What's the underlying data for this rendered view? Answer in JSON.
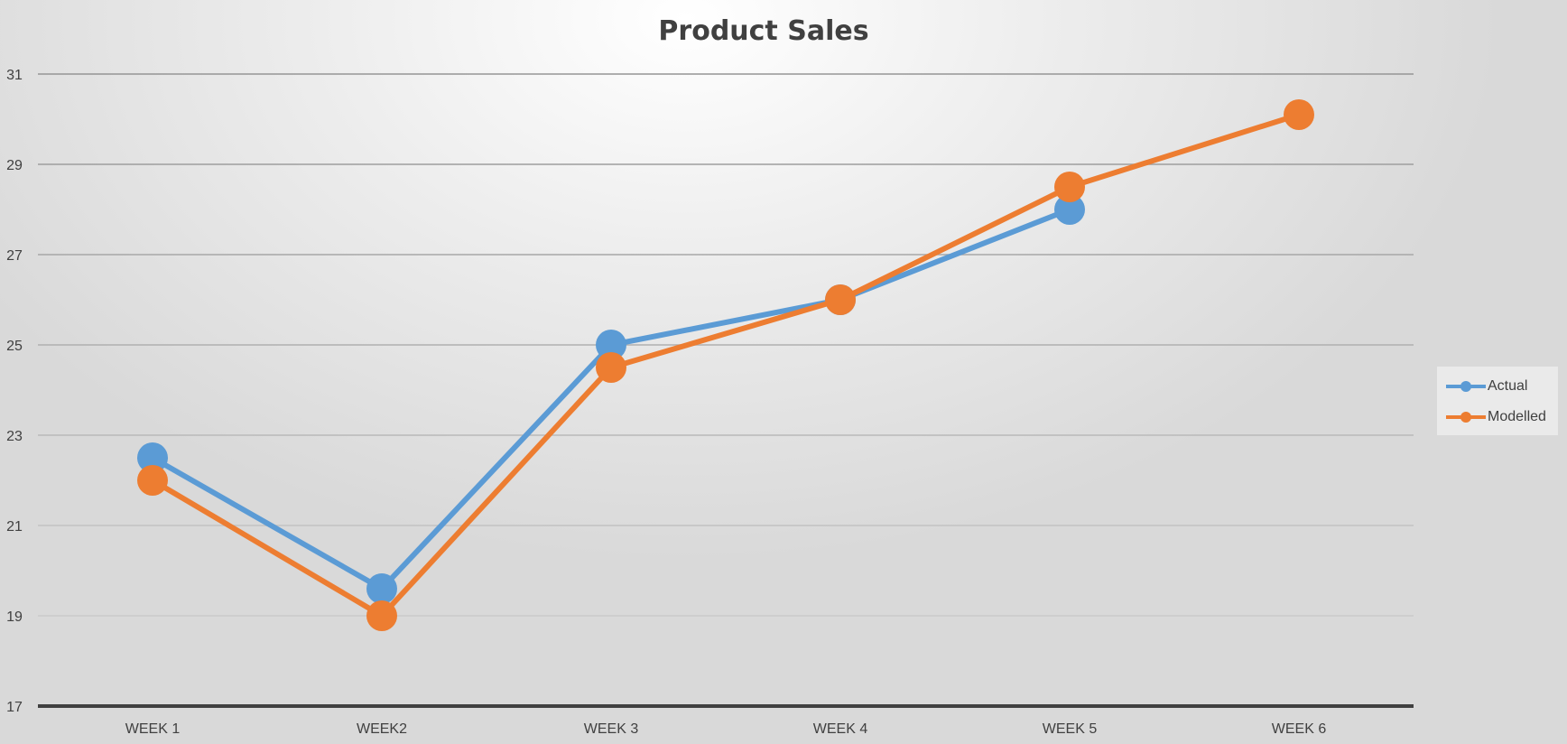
{
  "chart_data": {
    "type": "line",
    "title": "Product Sales",
    "categories": [
      "WEEK 1",
      "WEEK2",
      "WEEK 3",
      "WEEK 4",
      "WEEK 5",
      "WEEK 6"
    ],
    "ylim": [
      17,
      31
    ],
    "yticks": [
      17,
      19,
      21,
      23,
      25,
      27,
      29,
      31
    ],
    "grid": true,
    "legend_position": "right",
    "series": [
      {
        "name": "Actual",
        "color": "#5b9bd5",
        "values": [
          22.5,
          19.6,
          25.0,
          26.0,
          28.0,
          null
        ]
      },
      {
        "name": "Modelled",
        "color": "#ed7d31",
        "values": [
          22.0,
          19.0,
          24.5,
          26.0,
          28.5,
          30.1
        ]
      }
    ]
  }
}
